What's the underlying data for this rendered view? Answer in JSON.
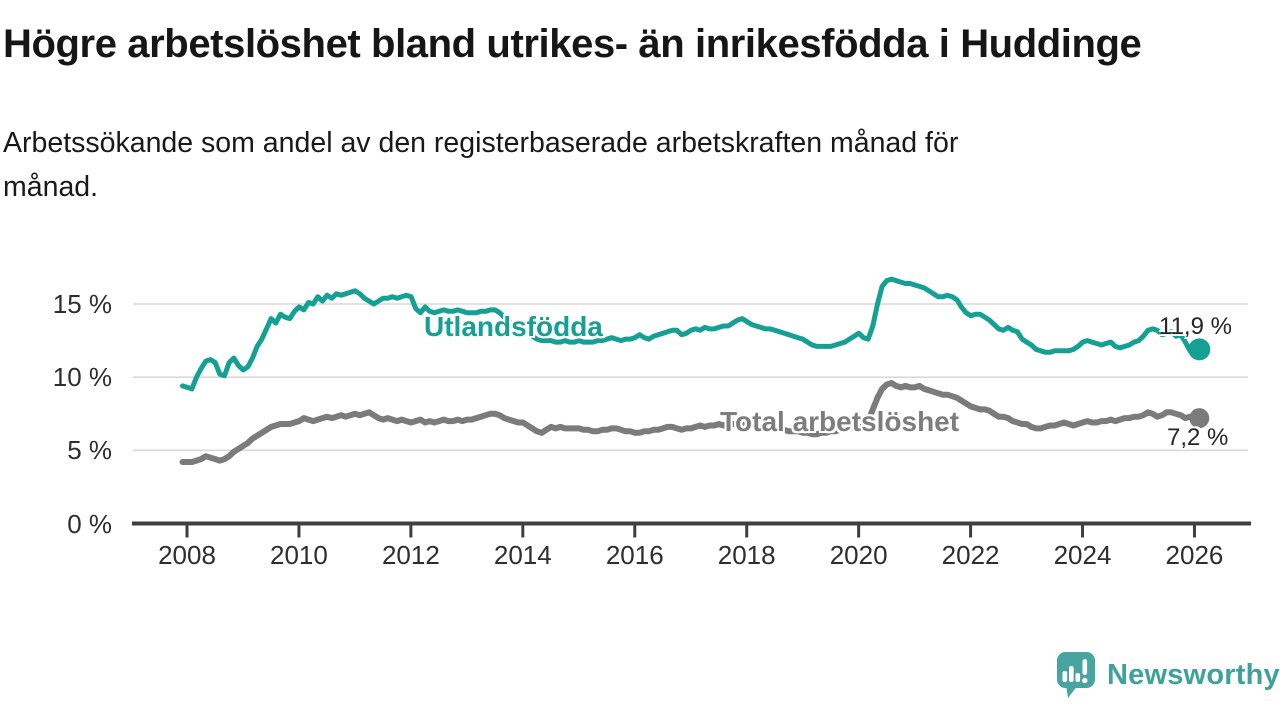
{
  "header": {
    "title": "Högre arbetslöshet bland utrikes- än inrikesfödda i Huddinge",
    "subtitle_line1": "Arbetssökande som andel av den registerbaserade arbetskraften månad för",
    "subtitle_line2": "månad."
  },
  "branding": {
    "name": "Newsworthy",
    "logo_icon": "speech-bubble-bar-chart-exclamation",
    "color": "#3ea19b"
  },
  "chart_data": {
    "type": "line",
    "title": "Högre arbetslöshet bland utrikes- än inrikesfödda i Huddinge",
    "subtitle": "Arbetssökande som andel av den registerbaserade arbetskraften månad för månad.",
    "unit": "%",
    "grid": "horizontal",
    "legend_position": "inline-labels",
    "ylim": [
      0,
      17.5
    ],
    "yticks": [
      0,
      5,
      10,
      15
    ],
    "ytick_labels": [
      "0 %",
      "5 %",
      "10 %",
      "15 %"
    ],
    "xticks": [
      2008,
      2010,
      2012,
      2014,
      2016,
      2018,
      2020,
      2022,
      2024,
      2026
    ],
    "xtick_labels": [
      "2008",
      "2010",
      "2012",
      "2014",
      "2016",
      "2018",
      "2020",
      "2022",
      "2024",
      "2026"
    ],
    "x_start": 2007.92,
    "x_step_years": 0.0833333,
    "colors": {
      "gridline": "#d9d9d9",
      "axis": "#3f3f3f",
      "tick_text": "#2e2e2e"
    },
    "series": [
      {
        "name": "Utlandsfödda",
        "color": "#14a094",
        "end_label": "11,9 %",
        "end_value": 11.9,
        "values": [
          9.4,
          9.3,
          9.2,
          10.0,
          10.6,
          11.1,
          11.2,
          11.0,
          10.2,
          10.1,
          11.0,
          11.3,
          10.8,
          10.5,
          10.7,
          11.3,
          12.1,
          12.6,
          13.3,
          14.0,
          13.7,
          14.3,
          14.1,
          14.0,
          14.5,
          14.8,
          14.6,
          15.1,
          15.0,
          15.5,
          15.2,
          15.6,
          15.4,
          15.7,
          15.6,
          15.7,
          15.8,
          15.9,
          15.7,
          15.4,
          15.2,
          15.0,
          15.2,
          15.4,
          15.4,
          15.5,
          15.4,
          15.5,
          15.6,
          15.5,
          14.7,
          14.4,
          14.8,
          14.5,
          14.4,
          14.5,
          14.6,
          14.5,
          14.5,
          14.6,
          14.5,
          14.4,
          14.4,
          14.4,
          14.5,
          14.5,
          14.6,
          14.6,
          14.4,
          14.1,
          13.8,
          13.6,
          13.5,
          13.3,
          13.0,
          12.8,
          12.6,
          12.5,
          12.5,
          12.5,
          12.4,
          12.4,
          12.5,
          12.4,
          12.4,
          12.5,
          12.4,
          12.4,
          12.4,
          12.5,
          12.5,
          12.6,
          12.7,
          12.6,
          12.5,
          12.6,
          12.6,
          12.7,
          12.9,
          12.7,
          12.6,
          12.8,
          12.9,
          13.0,
          13.1,
          13.2,
          13.2,
          12.9,
          13.0,
          13.2,
          13.3,
          13.2,
          13.4,
          13.3,
          13.3,
          13.4,
          13.5,
          13.5,
          13.7,
          13.9,
          14.0,
          13.8,
          13.6,
          13.5,
          13.4,
          13.3,
          13.3,
          13.2,
          13.1,
          13.0,
          12.9,
          12.8,
          12.7,
          12.6,
          12.4,
          12.2,
          12.1,
          12.1,
          12.1,
          12.1,
          12.2,
          12.3,
          12.4,
          12.6,
          12.8,
          13.0,
          12.7,
          12.6,
          13.5,
          15.0,
          16.2,
          16.6,
          16.7,
          16.6,
          16.5,
          16.4,
          16.4,
          16.3,
          16.2,
          16.1,
          15.9,
          15.7,
          15.5,
          15.5,
          15.6,
          15.5,
          15.3,
          14.8,
          14.4,
          14.2,
          14.3,
          14.3,
          14.1,
          13.9,
          13.6,
          13.3,
          13.2,
          13.4,
          13.2,
          13.1,
          12.6,
          12.4,
          12.2,
          11.9,
          11.8,
          11.7,
          11.7,
          11.8,
          11.8,
          11.8,
          11.8,
          11.9,
          12.1,
          12.4,
          12.5,
          12.4,
          12.3,
          12.2,
          12.3,
          12.4,
          12.1,
          12.0,
          12.1,
          12.2,
          12.4,
          12.5,
          12.8,
          13.2,
          13.3,
          13.2,
          12.9,
          13.0,
          13.1,
          12.8,
          12.9,
          12.4,
          11.8,
          11.9,
          11.9
        ]
      },
      {
        "name": "Total arbetslöshet",
        "color": "#7b7b7b",
        "end_label": "7,2 %",
        "end_value": 7.2,
        "values": [
          4.2,
          4.2,
          4.2,
          4.3,
          4.4,
          4.6,
          4.5,
          4.4,
          4.3,
          4.4,
          4.6,
          4.9,
          5.1,
          5.3,
          5.5,
          5.8,
          6.0,
          6.2,
          6.4,
          6.6,
          6.7,
          6.8,
          6.8,
          6.8,
          6.9,
          7.0,
          7.2,
          7.1,
          7.0,
          7.1,
          7.2,
          7.3,
          7.2,
          7.3,
          7.4,
          7.3,
          7.4,
          7.5,
          7.4,
          7.5,
          7.6,
          7.4,
          7.2,
          7.1,
          7.2,
          7.1,
          7.0,
          7.1,
          7.0,
          6.9,
          7.0,
          7.1,
          6.9,
          7.0,
          6.9,
          7.0,
          7.1,
          7.0,
          7.0,
          7.1,
          7.0,
          7.1,
          7.1,
          7.2,
          7.3,
          7.4,
          7.5,
          7.5,
          7.4,
          7.2,
          7.1,
          7.0,
          6.9,
          6.9,
          6.7,
          6.5,
          6.3,
          6.2,
          6.4,
          6.6,
          6.5,
          6.6,
          6.5,
          6.5,
          6.5,
          6.5,
          6.4,
          6.4,
          6.3,
          6.3,
          6.4,
          6.4,
          6.5,
          6.5,
          6.4,
          6.3,
          6.3,
          6.2,
          6.2,
          6.3,
          6.3,
          6.4,
          6.4,
          6.5,
          6.6,
          6.6,
          6.5,
          6.4,
          6.5,
          6.5,
          6.6,
          6.7,
          6.6,
          6.7,
          6.7,
          6.8,
          6.7,
          6.8,
          6.8,
          6.8,
          6.8,
          6.8,
          6.7,
          6.7,
          6.6,
          6.6,
          6.5,
          6.5,
          6.4,
          6.4,
          6.3,
          6.3,
          6.3,
          6.2,
          6.2,
          6.1,
          6.1,
          6.2,
          6.2,
          6.3,
          6.3,
          6.4,
          6.4,
          6.5,
          6.5,
          6.6,
          6.6,
          7.0,
          7.8,
          8.6,
          9.2,
          9.5,
          9.6,
          9.4,
          9.3,
          9.4,
          9.3,
          9.3,
          9.4,
          9.2,
          9.1,
          9.0,
          8.9,
          8.8,
          8.8,
          8.7,
          8.6,
          8.4,
          8.2,
          8.0,
          7.9,
          7.8,
          7.8,
          7.7,
          7.5,
          7.3,
          7.3,
          7.2,
          7.0,
          6.9,
          6.8,
          6.8,
          6.6,
          6.5,
          6.5,
          6.6,
          6.7,
          6.7,
          6.8,
          6.9,
          6.8,
          6.7,
          6.8,
          6.9,
          7.0,
          6.9,
          6.9,
          7.0,
          7.0,
          7.1,
          7.0,
          7.1,
          7.2,
          7.2,
          7.3,
          7.3,
          7.4,
          7.6,
          7.5,
          7.3,
          7.4,
          7.6,
          7.6,
          7.5,
          7.4,
          7.2,
          7.3,
          7.2,
          7.2
        ]
      }
    ]
  }
}
